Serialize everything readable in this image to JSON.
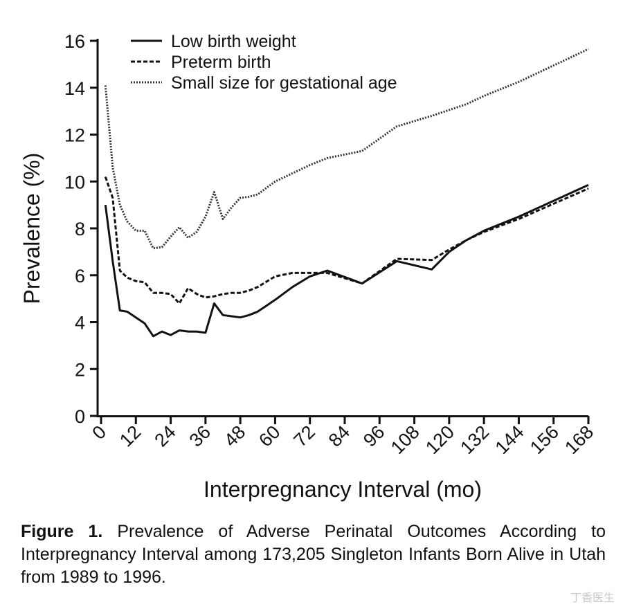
{
  "chart_data": {
    "type": "line",
    "title": "",
    "xlabel": "Interpregnancy Interval (mo)",
    "ylabel": "Prevalence (%)",
    "xlim": [
      0,
      168
    ],
    "ylim": [
      0,
      16
    ],
    "xticks": [
      "0",
      "12",
      "24",
      "36",
      "48",
      "60",
      "72",
      "84",
      "96",
      "108",
      "120",
      "132",
      "144",
      "156",
      "168"
    ],
    "yticks": [
      "0",
      "2",
      "4",
      "6",
      "8",
      "10",
      "12",
      "14",
      "16"
    ],
    "grid": false,
    "legend_position": "top-left",
    "series": [
      {
        "name": "Low birth weight",
        "style": "solid",
        "color": "#111111",
        "x": [
          1.5,
          4,
          6.5,
          9,
          12,
          15,
          18,
          21,
          24,
          27,
          30,
          33,
          36,
          39,
          42,
          45,
          48,
          51,
          54,
          60,
          66,
          72,
          78,
          90,
          102,
          114,
          120,
          126,
          132,
          144,
          168
        ],
        "y": [
          9.0,
          6.6,
          4.5,
          4.45,
          4.2,
          3.95,
          3.4,
          3.6,
          3.45,
          3.65,
          3.6,
          3.6,
          3.55,
          4.8,
          4.3,
          4.25,
          4.2,
          4.3,
          4.45,
          4.95,
          5.5,
          5.95,
          6.2,
          5.65,
          6.6,
          6.25,
          7.0,
          7.5,
          7.9,
          8.5,
          9.85
        ]
      },
      {
        "name": "Preterm birth",
        "style": "dashed",
        "color": "#111111",
        "x": [
          1.5,
          4,
          6.5,
          9,
          12,
          15,
          18,
          21,
          24,
          27,
          30,
          33,
          36,
          39,
          42,
          45,
          48,
          51,
          54,
          60,
          66,
          72,
          78,
          90,
          102,
          114,
          120,
          126,
          132,
          144,
          168
        ],
        "y": [
          10.2,
          9.3,
          6.2,
          5.9,
          5.75,
          5.7,
          5.25,
          5.25,
          5.2,
          4.8,
          5.45,
          5.2,
          5.05,
          5.1,
          5.2,
          5.25,
          5.25,
          5.35,
          5.5,
          5.95,
          6.1,
          6.1,
          6.1,
          5.65,
          6.7,
          6.65,
          7.1,
          7.5,
          7.85,
          8.4,
          9.7
        ]
      },
      {
        "name": "Small size for gestational age",
        "style": "dotted",
        "color": "#333333",
        "x": [
          1.5,
          4,
          6.5,
          9,
          12,
          15,
          18,
          21,
          24,
          27,
          30,
          33,
          36,
          39,
          42,
          45,
          48,
          51,
          54,
          60,
          66,
          72,
          78,
          90,
          102,
          114,
          120,
          126,
          132,
          144,
          168
        ],
        "y": [
          14.1,
          10.6,
          9.0,
          8.3,
          7.9,
          7.9,
          7.15,
          7.2,
          7.65,
          8.05,
          7.6,
          7.85,
          8.5,
          9.55,
          8.4,
          8.9,
          9.3,
          9.35,
          9.45,
          10.0,
          10.35,
          10.7,
          11.0,
          11.3,
          12.35,
          12.8,
          13.05,
          13.3,
          13.65,
          14.25,
          15.65
        ]
      }
    ]
  },
  "caption": {
    "label": "Figure 1.",
    "text": " Prevalence of Adverse Perinatal Outcomes According to Interpregnancy Interval among 173,205 Singleton Infants Born Alive in Utah from 1989 to 1996."
  },
  "watermark": "丁香医生"
}
